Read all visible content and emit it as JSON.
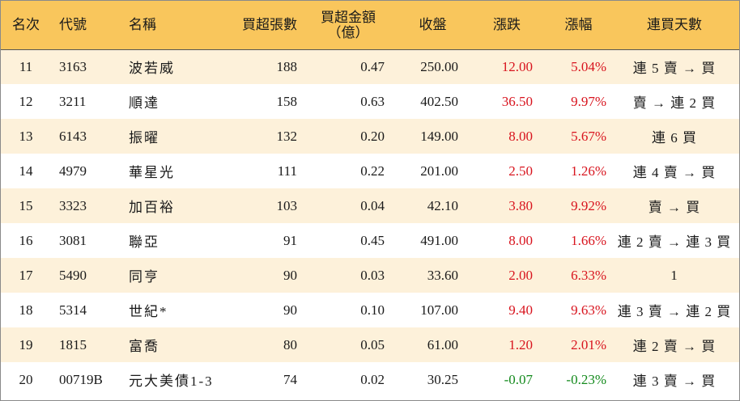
{
  "headers": {
    "rank": "名次",
    "code": "代號",
    "name": "名稱",
    "net_lots": "買超張數",
    "amount_line1": "買超金額",
    "amount_line2": "（億）",
    "close": "收盤",
    "change": "漲跌",
    "change_pct": "漲幅",
    "buy_days": "連買天數"
  },
  "rows": [
    {
      "rank": "11",
      "code": "3163",
      "name": "波若威",
      "lots": "188",
      "amount": "0.47",
      "close": "250.00",
      "change": "12.00",
      "pct": "5.04%",
      "days": "連 5 賣 → 買",
      "dir": "up"
    },
    {
      "rank": "12",
      "code": "3211",
      "name": "順達",
      "lots": "158",
      "amount": "0.63",
      "close": "402.50",
      "change": "36.50",
      "pct": "9.97%",
      "days": "賣 → 連 2 買",
      "dir": "up"
    },
    {
      "rank": "13",
      "code": "6143",
      "name": "振曜",
      "lots": "132",
      "amount": "0.20",
      "close": "149.00",
      "change": "8.00",
      "pct": "5.67%",
      "days": "連 6 買",
      "dir": "up"
    },
    {
      "rank": "14",
      "code": "4979",
      "name": "華星光",
      "lots": "111",
      "amount": "0.22",
      "close": "201.00",
      "change": "2.50",
      "pct": "1.26%",
      "days": "連 4 賣 → 買",
      "dir": "up"
    },
    {
      "rank": "15",
      "code": "3323",
      "name": "加百裕",
      "lots": "103",
      "amount": "0.04",
      "close": "42.10",
      "change": "3.80",
      "pct": "9.92%",
      "days": "賣 → 買",
      "dir": "up"
    },
    {
      "rank": "16",
      "code": "3081",
      "name": "聯亞",
      "lots": "91",
      "amount": "0.45",
      "close": "491.00",
      "change": "8.00",
      "pct": "1.66%",
      "days": "連 2 賣 → 連 3 買",
      "dir": "up"
    },
    {
      "rank": "17",
      "code": "5490",
      "name": "同亨",
      "lots": "90",
      "amount": "0.03",
      "close": "33.60",
      "change": "2.00",
      "pct": "6.33%",
      "days": "1",
      "dir": "up"
    },
    {
      "rank": "18",
      "code": "5314",
      "name": "世紀*",
      "lots": "90",
      "amount": "0.10",
      "close": "107.00",
      "change": "9.40",
      "pct": "9.63%",
      "days": "連 3 賣 → 連 2 買",
      "dir": "up"
    },
    {
      "rank": "19",
      "code": "1815",
      "name": "富喬",
      "lots": "80",
      "amount": "0.05",
      "close": "61.00",
      "change": "1.20",
      "pct": "2.01%",
      "days": "連 2 賣 → 買",
      "dir": "up"
    },
    {
      "rank": "20",
      "code": "00719B",
      "name": "元大美債1-3",
      "lots": "74",
      "amount": "0.02",
      "close": "30.25",
      "change": "-0.07",
      "pct": "-0.23%",
      "days": "連 3 賣 → 買",
      "dir": "down"
    }
  ],
  "colors": {
    "header_bg": "#f9c65c",
    "odd_row_bg": "#fdf1da",
    "even_row_bg": "#ffffff",
    "up": "#d8141e",
    "down": "#138a1c"
  }
}
